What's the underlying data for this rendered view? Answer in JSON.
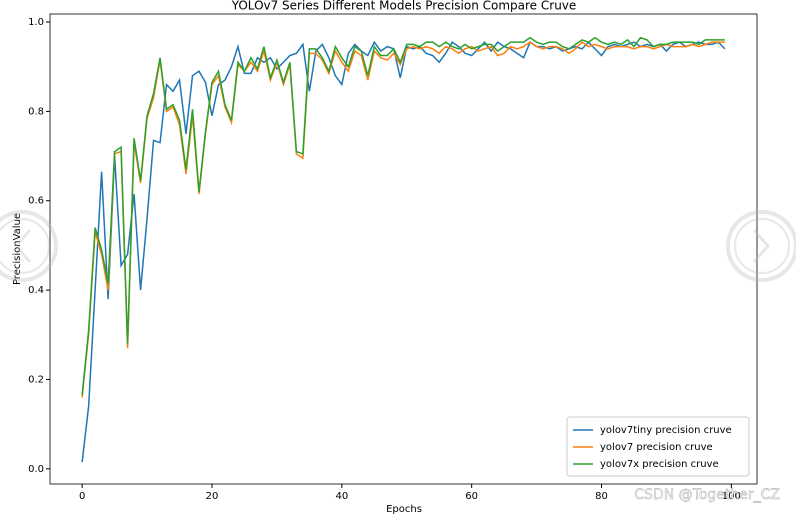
{
  "chart_data": {
    "type": "line",
    "title": "YOLOv7 Series Different Models Precision Compare Cruve",
    "x_label": "Epochs",
    "y_label": "PrecisionValue",
    "x": [
      0,
      1,
      2,
      3,
      4,
      5,
      6,
      7,
      8,
      9,
      10,
      11,
      12,
      13,
      14,
      15,
      16,
      17,
      18,
      19,
      20,
      21,
      22,
      23,
      24,
      25,
      26,
      27,
      28,
      29,
      30,
      31,
      32,
      33,
      34,
      35,
      36,
      37,
      38,
      39,
      40,
      41,
      42,
      43,
      44,
      45,
      46,
      47,
      48,
      49,
      50,
      51,
      52,
      53,
      54,
      55,
      56,
      57,
      58,
      59,
      60,
      61,
      62,
      63,
      64,
      65,
      66,
      67,
      68,
      69,
      70,
      71,
      72,
      73,
      74,
      75,
      76,
      77,
      78,
      79,
      80,
      81,
      82,
      83,
      84,
      85,
      86,
      87,
      88,
      89,
      90,
      91,
      92,
      93,
      94,
      95,
      96,
      97,
      98,
      99
    ],
    "series": [
      {
        "name": "yolov7tiny precision cruve",
        "color": "#1f77b4",
        "values": [
          0.015,
          0.14,
          0.4,
          0.665,
          0.38,
          0.7,
          0.455,
          0.48,
          0.615,
          0.4,
          0.56,
          0.735,
          0.73,
          0.86,
          0.845,
          0.87,
          0.75,
          0.88,
          0.89,
          0.865,
          0.79,
          0.86,
          0.87,
          0.9,
          0.945,
          0.885,
          0.885,
          0.92,
          0.91,
          0.92,
          0.895,
          0.91,
          0.925,
          0.93,
          0.95,
          0.845,
          0.935,
          0.95,
          0.92,
          0.88,
          0.86,
          0.93,
          0.95,
          0.935,
          0.925,
          0.955,
          0.935,
          0.945,
          0.94,
          0.875,
          0.945,
          0.94,
          0.945,
          0.93,
          0.925,
          0.91,
          0.93,
          0.955,
          0.945,
          0.93,
          0.925,
          0.94,
          0.955,
          0.935,
          0.955,
          0.945,
          0.94,
          0.93,
          0.92,
          0.955,
          0.945,
          0.945,
          0.94,
          0.945,
          0.935,
          0.94,
          0.945,
          0.94,
          0.955,
          0.94,
          0.925,
          0.945,
          0.95,
          0.945,
          0.95,
          0.955,
          0.945,
          0.95,
          0.945,
          0.95,
          0.935,
          0.95,
          0.955,
          0.945,
          0.95,
          0.955,
          0.95,
          0.95,
          0.955,
          0.94
        ]
      },
      {
        "name": "yolov7 precision cruve",
        "color": "#ff7f0e",
        "values": [
          0.16,
          0.3,
          0.53,
          0.48,
          0.4,
          0.705,
          0.71,
          0.27,
          0.73,
          0.64,
          0.785,
          0.83,
          0.915,
          0.8,
          0.81,
          0.77,
          0.66,
          0.79,
          0.615,
          0.75,
          0.86,
          0.88,
          0.81,
          0.775,
          0.905,
          0.89,
          0.91,
          0.89,
          0.935,
          0.87,
          0.91,
          0.86,
          0.905,
          0.705,
          0.695,
          0.93,
          0.93,
          0.915,
          0.885,
          0.935,
          0.91,
          0.89,
          0.935,
          0.925,
          0.87,
          0.935,
          0.92,
          0.915,
          0.93,
          0.905,
          0.94,
          0.945,
          0.94,
          0.945,
          0.94,
          0.93,
          0.945,
          0.94,
          0.93,
          0.94,
          0.945,
          0.935,
          0.94,
          0.945,
          0.925,
          0.93,
          0.945,
          0.94,
          0.945,
          0.955,
          0.945,
          0.94,
          0.945,
          0.945,
          0.94,
          0.93,
          0.94,
          0.955,
          0.945,
          0.95,
          0.945,
          0.94,
          0.945,
          0.945,
          0.945,
          0.94,
          0.945,
          0.945,
          0.94,
          0.945,
          0.95,
          0.945,
          0.945,
          0.945,
          0.95,
          0.945,
          0.95,
          0.955,
          0.955,
          0.955
        ]
      },
      {
        "name": "yolov7x precision cruve",
        "color": "#2ca02c",
        "values": [
          0.165,
          0.31,
          0.54,
          0.49,
          0.415,
          0.71,
          0.72,
          0.28,
          0.74,
          0.645,
          0.79,
          0.84,
          0.92,
          0.805,
          0.815,
          0.78,
          0.67,
          0.805,
          0.62,
          0.755,
          0.865,
          0.89,
          0.815,
          0.78,
          0.91,
          0.89,
          0.92,
          0.895,
          0.945,
          0.875,
          0.915,
          0.865,
          0.91,
          0.71,
          0.705,
          0.94,
          0.94,
          0.92,
          0.89,
          0.945,
          0.92,
          0.9,
          0.945,
          0.935,
          0.88,
          0.945,
          0.925,
          0.925,
          0.94,
          0.91,
          0.95,
          0.95,
          0.945,
          0.955,
          0.955,
          0.945,
          0.955,
          0.945,
          0.94,
          0.95,
          0.94,
          0.945,
          0.95,
          0.95,
          0.935,
          0.945,
          0.955,
          0.955,
          0.955,
          0.965,
          0.955,
          0.95,
          0.955,
          0.955,
          0.945,
          0.94,
          0.95,
          0.96,
          0.955,
          0.965,
          0.955,
          0.95,
          0.955,
          0.95,
          0.96,
          0.945,
          0.965,
          0.96,
          0.945,
          0.95,
          0.95,
          0.955,
          0.955,
          0.955,
          0.955,
          0.95,
          0.96,
          0.96,
          0.96,
          0.96
        ]
      }
    ],
    "xlim": [
      -4.95,
      103.95
    ],
    "ylim": [
      -0.034,
      1.018
    ],
    "xticks": [
      0,
      20,
      40,
      60,
      80,
      100
    ],
    "yticks": [
      {
        "value": 0,
        "label": "0.0"
      },
      0.2,
      0.4,
      0.6,
      0.8,
      {
        "value": 1,
        "label": "1.0"
      }
    ],
    "legend": "lower right"
  },
  "watermark": "CSDN @Together_CZ"
}
